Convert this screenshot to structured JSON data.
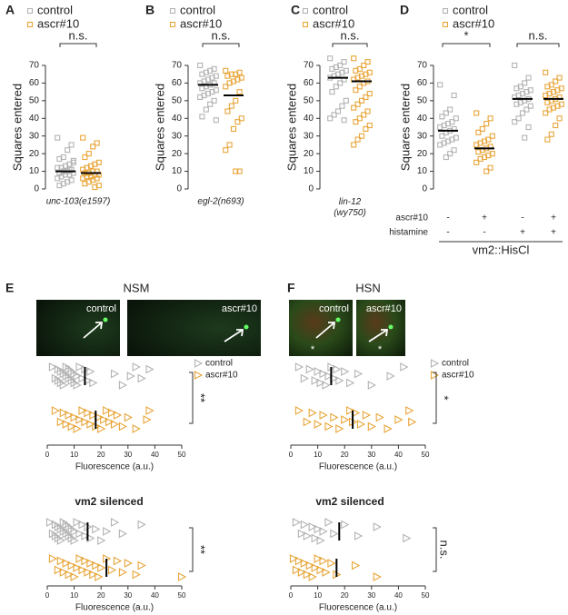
{
  "chart_data": [
    {
      "type": "strip",
      "panel": "A",
      "ylabel": "Squares entered",
      "xlabel": "unc-103(e1597)",
      "ylim": [
        0,
        70
      ],
      "yticks": [
        0,
        10,
        20,
        30,
        40,
        50,
        60,
        70
      ],
      "marker": "square",
      "significance": [
        "n.s."
      ],
      "series": [
        {
          "name": "control",
          "color": "#b3b3b3",
          "mean": 10,
          "values": [
            29,
            25,
            22,
            18,
            17,
            15,
            14,
            13,
            12,
            12,
            11,
            10,
            10,
            9,
            9,
            8,
            8,
            7,
            6,
            5,
            4,
            3,
            2,
            16,
            11
          ]
        },
        {
          "name": "ascr#10",
          "color": "#e8a63a",
          "mean": 9,
          "values": [
            29,
            26,
            24,
            20,
            18,
            15,
            14,
            13,
            12,
            11,
            10,
            10,
            9,
            9,
            8,
            8,
            7,
            7,
            6,
            6,
            5,
            4,
            3,
            2,
            1
          ]
        }
      ]
    },
    {
      "type": "strip",
      "panel": "B",
      "ylabel": "Squares entered",
      "xlabel": "egl-2(n693)",
      "ylim": [
        0,
        70
      ],
      "yticks": [
        0,
        10,
        20,
        30,
        40,
        50,
        60,
        70
      ],
      "marker": "square",
      "significance": [
        "n.s."
      ],
      "series": [
        {
          "name": "control",
          "color": "#b3b3b3",
          "mean": 59,
          "values": [
            70,
            68,
            67,
            66,
            65,
            64,
            63,
            62,
            61,
            60,
            60,
            59,
            58,
            57,
            56,
            55,
            54,
            53,
            52,
            50,
            48,
            45,
            41,
            39
          ]
        },
        {
          "name": "ascr#10",
          "color": "#e8a63a",
          "mean": 53,
          "values": [
            67,
            66,
            65,
            65,
            64,
            63,
            62,
            61,
            60,
            58,
            55,
            50,
            47,
            44,
            40,
            38,
            34,
            25,
            22,
            10,
            10
          ]
        }
      ]
    },
    {
      "type": "strip",
      "panel": "C",
      "ylabel": "Squares entered",
      "xlabel": "lin-12 (wy750)",
      "ylim": [
        0,
        70
      ],
      "yticks": [
        0,
        10,
        20,
        30,
        40,
        50,
        60,
        70
      ],
      "marker": "square",
      "significance": [
        "n.s."
      ],
      "series": [
        {
          "name": "control",
          "color": "#b3b3b3",
          "mean": 63,
          "values": [
            74,
            72,
            70,
            69,
            68,
            67,
            66,
            65,
            64,
            63,
            62,
            60,
            58,
            55,
            50,
            47,
            44,
            42,
            40,
            39
          ]
        },
        {
          "name": "ascr#10",
          "color": "#e8a63a",
          "mean": 61,
          "values": [
            74,
            72,
            70,
            68,
            67,
            66,
            65,
            64,
            63,
            62,
            61,
            60,
            58,
            56,
            54,
            52,
            50,
            48,
            46,
            44,
            42,
            40,
            38,
            36,
            34,
            30,
            28,
            25
          ]
        }
      ]
    },
    {
      "type": "strip",
      "panel": "D",
      "ylabel": "Squares entered",
      "ylim": [
        0,
        70
      ],
      "yticks": [
        0,
        10,
        20,
        30,
        40,
        50,
        60,
        70
      ],
      "marker": "square",
      "significance": [
        "*",
        "n.s."
      ],
      "conditions": [
        {
          "label": "ascr#10",
          "values": [
            "-",
            "+",
            "-",
            "+"
          ]
        },
        {
          "label": "histamine",
          "values": [
            "-",
            "-",
            "+",
            "+"
          ]
        }
      ],
      "group_label": "vm2::HisCl",
      "series": [
        {
          "name": "control",
          "color": "#b3b3b3",
          "mean": 33,
          "values": [
            59,
            53,
            45,
            43,
            41,
            40,
            38,
            37,
            36,
            35,
            34,
            33,
            32,
            30,
            29,
            28,
            27,
            26,
            25,
            22,
            20,
            18
          ]
        },
        {
          "name": "ascr#10",
          "color": "#e8a63a",
          "mean": 23,
          "values": [
            43,
            40,
            37,
            34,
            32,
            30,
            28,
            27,
            26,
            25,
            24,
            23,
            22,
            21,
            20,
            19,
            18,
            17,
            15,
            12,
            10
          ]
        },
        {
          "color": "#b3b3b3",
          "mean": 51,
          "values": [
            70,
            63,
            60,
            58,
            57,
            56,
            55,
            54,
            53,
            52,
            51,
            50,
            49,
            48,
            47,
            45,
            43,
            40,
            38,
            35,
            29
          ]
        },
        {
          "color": "#e8a63a",
          "mean": 51,
          "values": [
            66,
            63,
            61,
            59,
            58,
            57,
            56,
            55,
            54,
            53,
            52,
            51,
            50,
            49,
            48,
            47,
            46,
            45,
            43,
            40,
            36,
            31,
            28
          ]
        }
      ]
    },
    {
      "type": "strip-horizontal",
      "panel": "E",
      "title": "NSM",
      "images": [
        "control",
        "ascr#10"
      ],
      "xlabel": "Fluorescence (a.u.)",
      "xlim": [
        0,
        50
      ],
      "xticks": [
        0,
        10,
        20,
        30,
        40,
        50
      ],
      "marker": "triangle",
      "significance": [
        "**"
      ],
      "series": [
        {
          "name": "control",
          "color": "#b3b3b3",
          "mean": 14,
          "values": [
            2,
            3,
            4,
            4,
            5,
            5,
            6,
            6,
            7,
            7,
            8,
            8,
            9,
            9,
            10,
            10,
            11,
            11,
            12,
            13,
            14,
            15,
            16,
            17,
            25,
            28,
            31,
            33,
            35,
            38
          ]
        },
        {
          "name": "ascr#10",
          "color": "#e8a63a",
          "mean": 18,
          "values": [
            3,
            5,
            6,
            7,
            8,
            9,
            10,
            11,
            12,
            13,
            14,
            15,
            16,
            17,
            18,
            19,
            20,
            21,
            22,
            23,
            24,
            25,
            26,
            28,
            30,
            33,
            37,
            38
          ]
        }
      ]
    },
    {
      "type": "strip-horizontal",
      "panel": "F",
      "title": "HSN",
      "images": [
        "control",
        "ascr#10"
      ],
      "image_marker": "*",
      "xlabel": "Fluorescence (a.u.)",
      "xlim": [
        0,
        50
      ],
      "xticks": [
        0,
        10,
        20,
        30,
        40,
        50
      ],
      "marker": "triangle",
      "significance": [
        "*"
      ],
      "series": [
        {
          "name": "control",
          "color": "#b3b3b3",
          "mean": 15,
          "values": [
            3,
            5,
            7,
            9,
            10,
            11,
            12,
            13,
            14,
            15,
            16,
            17,
            18,
            20,
            22,
            25,
            30,
            37,
            42
          ]
        },
        {
          "name": "ascr#10",
          "color": "#e8a63a",
          "mean": 23,
          "values": [
            3,
            6,
            8,
            10,
            12,
            14,
            16,
            18,
            20,
            22,
            23,
            24,
            26,
            28,
            30,
            33,
            36,
            40,
            44,
            45
          ]
        }
      ]
    },
    {
      "type": "strip-horizontal",
      "title": "vm2 silenced",
      "xlabel": "Fluorescence (a.u.)",
      "xlim": [
        0,
        50
      ],
      "xticks": [
        0,
        10,
        20,
        30,
        40,
        50
      ],
      "marker": "triangle",
      "significance": [
        "**"
      ],
      "series": [
        {
          "color": "#b3b3b3",
          "mean": 15,
          "values": [
            1,
            2,
            3,
            3,
            4,
            4,
            5,
            5,
            6,
            6,
            7,
            7,
            8,
            8,
            9,
            9,
            10,
            10,
            11,
            12,
            13,
            14,
            15,
            16,
            18,
            20,
            22,
            25,
            28,
            35
          ]
        },
        {
          "color": "#e8a63a",
          "mean": 22,
          "values": [
            2,
            4,
            5,
            6,
            7,
            8,
            9,
            10,
            11,
            12,
            13,
            14,
            15,
            16,
            17,
            18,
            19,
            20,
            22,
            24,
            26,
            28,
            30,
            33,
            35,
            50
          ]
        }
      ]
    },
    {
      "type": "strip-horizontal",
      "title": "vm2 silenced",
      "xlabel": "Fluorescence (a.u.)",
      "xlim": [
        0,
        50
      ],
      "xticks": [
        0,
        10,
        20,
        30,
        40,
        50
      ],
      "marker": "triangle",
      "significance": [
        "n.s."
      ],
      "series": [
        {
          "color": "#b3b3b3",
          "mean": 18,
          "values": [
            2,
            4,
            5,
            6,
            8,
            9,
            10,
            11,
            12,
            14,
            16,
            20,
            25,
            32,
            43
          ]
        },
        {
          "color": "#e8a63a",
          "mean": 17,
          "values": [
            1,
            2,
            3,
            4,
            5,
            6,
            7,
            8,
            9,
            10,
            11,
            12,
            13,
            15,
            17,
            24,
            32
          ]
        }
      ]
    }
  ]
}
